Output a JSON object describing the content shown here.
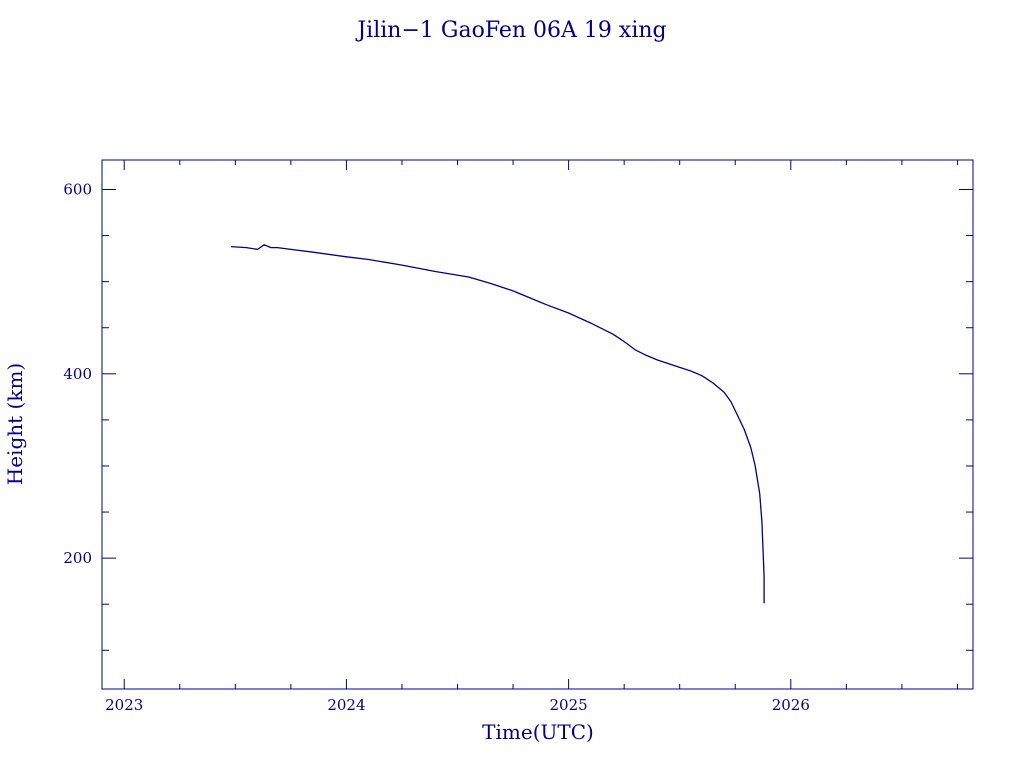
{
  "chart_data": {
    "type": "line",
    "title": "Jilin−1 GaoFen 06A 19 xing",
    "xlabel": "Time(UTC)",
    "ylabel": "Height (km)",
    "xlim": [
      2022.9,
      2026.82
    ],
    "ylim": [
      58,
      632
    ],
    "x_ticks": [
      {
        "value": 2023,
        "label": "2023"
      },
      {
        "value": 2024,
        "label": "2024"
      },
      {
        "value": 2025,
        "label": "2025"
      },
      {
        "value": 2026,
        "label": "2026"
      }
    ],
    "y_ticks": [
      {
        "value": 200,
        "label": "200"
      },
      {
        "value": 400,
        "label": "400"
      },
      {
        "value": 600,
        "label": "600"
      }
    ],
    "grid": false,
    "color": "#00008b",
    "series": [
      {
        "x": [
          2023.48,
          2023.55,
          2023.6,
          2023.63,
          2023.66,
          2023.69,
          2023.75,
          2023.85,
          2024.0,
          2024.1,
          2024.25,
          2024.4,
          2024.55,
          2024.65,
          2024.75,
          2024.85,
          2024.9,
          2025.0,
          2025.1,
          2025.2,
          2025.25,
          2025.3,
          2025.35,
          2025.4,
          2025.5,
          2025.55,
          2025.6,
          2025.65,
          2025.7,
          2025.73,
          2025.76,
          2025.79,
          2025.82,
          2025.84,
          2025.86,
          2025.87,
          2025.875,
          2025.88,
          2025.88
        ],
        "y": [
          538,
          537,
          535,
          540,
          537,
          537,
          535,
          532,
          527,
          524,
          518,
          511,
          505,
          498,
          490,
          480,
          475,
          466,
          455,
          443,
          435,
          426,
          420,
          415,
          407,
          403,
          398,
          390,
          380,
          370,
          355,
          340,
          320,
          300,
          270,
          240,
          210,
          180,
          151
        ]
      }
    ]
  }
}
